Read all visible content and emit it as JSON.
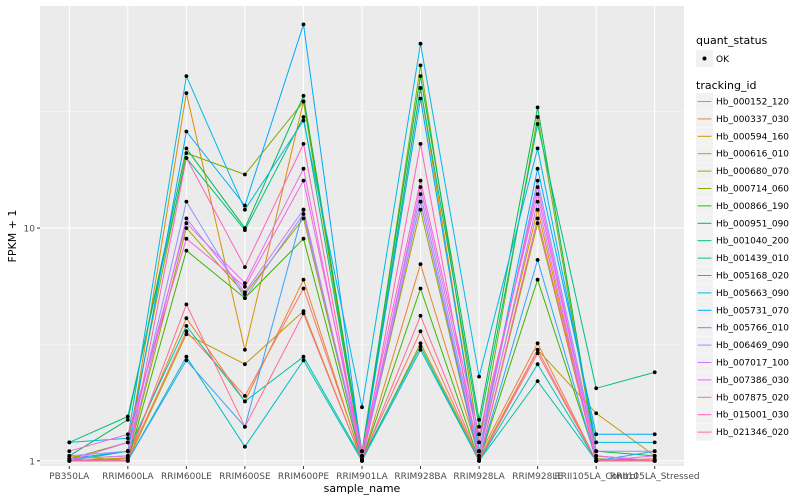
{
  "chart_data": {
    "type": "line",
    "xlabel": "sample_name",
    "ylabel": "FPKM + 1",
    "y_scale": "log10",
    "ylim": [
      0.95,
      90
    ],
    "y_ticks": [
      1,
      10
    ],
    "y_tick_labels": [
      "1",
      "10"
    ],
    "grid": true,
    "legend_position": "right",
    "categories": [
      "PB350LA",
      "RRIM600LA",
      "RRIM600LE",
      "RRIM600SE",
      "RRIM600PE",
      "RRIM901LA",
      "RRIM928BA",
      "RRIM928LA",
      "RRIM928LE",
      "RRII105LA_Control",
      "RRII105LA_Stressed"
    ],
    "category_labels": [
      "PB350LA",
      "RRIM600LA",
      "RRIM600LE",
      "RRIM600SE",
      "RRIM600PE",
      "RRIM901LA",
      "RRIM928BA",
      "RRIM928LA",
      "RRIM928LE",
      "RRII105LA_Control",
      "RRII105LA_Stressed"
    ],
    "legend_quant_title": "quant_status",
    "legend_quant_items": [
      "OK"
    ],
    "legend_title": "tracking_id",
    "series": [
      {
        "name": "Hb_000152_120",
        "color": "#F8766D",
        "values": [
          1.0,
          1.02,
          3.6,
          1.9,
          5.5,
          1.02,
          3.6,
          1.0,
          2.9,
          1.0,
          1.0
        ]
      },
      {
        "name": "Hb_000337_030",
        "color": "#EA8331",
        "values": [
          1.02,
          1.05,
          4.1,
          1.8,
          6.0,
          1.0,
          7.0,
          1.05,
          3.2,
          1.0,
          1.02
        ]
      },
      {
        "name": "Hb_000594_160",
        "color": "#D89000",
        "values": [
          1.0,
          1.1,
          38.0,
          3.0,
          35.0,
          1.05,
          40.0,
          1.1,
          12.0,
          1.0,
          1.0
        ]
      },
      {
        "name": "Hb_000616_010",
        "color": "#C09B00",
        "values": [
          1.05,
          1.0,
          3.5,
          2.6,
          4.4,
          1.0,
          3.2,
          1.02,
          3.0,
          1.6,
          1.05
        ]
      },
      {
        "name": "Hb_000680_070",
        "color": "#A3A500",
        "values": [
          1.0,
          1.03,
          10.0,
          5.2,
          11.0,
          1.02,
          12.0,
          1.0,
          10.5,
          1.0,
          1.0
        ]
      },
      {
        "name": "Hb_000714_060",
        "color": "#7CAE00",
        "values": [
          1.02,
          1.2,
          21.0,
          17.0,
          35.0,
          1.05,
          50.0,
          1.2,
          30.0,
          1.05,
          1.0
        ]
      },
      {
        "name": "Hb_000866_190",
        "color": "#39B600",
        "values": [
          1.0,
          1.0,
          8.0,
          5.0,
          9.0,
          1.0,
          5.5,
          1.0,
          6.0,
          1.02,
          1.0
        ]
      },
      {
        "name": "Hb_000951_090",
        "color": "#00BB4E",
        "values": [
          1.05,
          1.5,
          22.0,
          10.0,
          37.0,
          1.1,
          45.0,
          1.5,
          33.0,
          1.1,
          1.05
        ]
      },
      {
        "name": "Hb_001040_200",
        "color": "#00BF7D",
        "values": [
          1.2,
          1.55,
          20.0,
          9.8,
          30.0,
          1.05,
          40.0,
          1.4,
          28.0,
          2.05,
          2.4
        ]
      },
      {
        "name": "Hb_001439_010",
        "color": "#00C1A3",
        "values": [
          1.0,
          1.1,
          3.8,
          1.8,
          2.8,
          1.02,
          3.1,
          1.0,
          2.2,
          1.0,
          1.0
        ]
      },
      {
        "name": "Hb_005168_020",
        "color": "#00BFC4",
        "values": [
          1.0,
          1.0,
          2.8,
          1.15,
          2.7,
          1.0,
          3.0,
          1.0,
          2.6,
          1.0,
          1.0
        ]
      },
      {
        "name": "Hb_005663_090",
        "color": "#00B8E7",
        "values": [
          1.2,
          1.25,
          45.0,
          12.0,
          29.0,
          1.7,
          62.0,
          2.3,
          22.0,
          1.2,
          1.2
        ]
      },
      {
        "name": "Hb_005731_070",
        "color": "#00A9FF",
        "values": [
          1.02,
          1.1,
          26.0,
          12.5,
          75.0,
          1.05,
          36.0,
          1.1,
          18.0,
          1.3,
          1.3
        ]
      },
      {
        "name": "Hb_005766_010",
        "color": "#35A2FF",
        "values": [
          1.0,
          1.0,
          2.7,
          1.4,
          12.0,
          1.0,
          13.0,
          1.0,
          7.3,
          1.0,
          1.1
        ]
      },
      {
        "name": "Hb_006469_090",
        "color": "#9590FF",
        "values": [
          1.05,
          1.1,
          13.0,
          5.0,
          11.5,
          1.05,
          14.0,
          1.1,
          16.0,
          1.1,
          1.1
        ]
      },
      {
        "name": "Hb_007017_100",
        "color": "#C77CFF",
        "values": [
          1.02,
          1.05,
          11.0,
          5.3,
          12.0,
          1.02,
          13.0,
          1.05,
          13.0,
          1.0,
          1.05
        ]
      },
      {
        "name": "Hb_007386_030",
        "color": "#E76BF3",
        "values": [
          1.0,
          1.2,
          10.5,
          5.8,
          18.0,
          1.0,
          15.0,
          1.2,
          15.0,
          1.05,
          1.0
        ]
      },
      {
        "name": "Hb_007875_020",
        "color": "#FA62DB",
        "values": [
          1.1,
          1.3,
          9.0,
          5.6,
          16.0,
          1.1,
          16.0,
          1.3,
          14.0,
          1.05,
          1.0
        ]
      },
      {
        "name": "Hb_015001_030",
        "color": "#FF62BC",
        "values": [
          1.0,
          1.0,
          20.0,
          6.8,
          23.0,
          1.0,
          23.0,
          1.0,
          11.0,
          1.0,
          1.0
        ]
      },
      {
        "name": "Hb_021346_020",
        "color": "#FF6C91",
        "values": [
          1.0,
          1.0,
          4.7,
          1.4,
          4.3,
          1.0,
          4.2,
          1.0,
          3.0,
          1.0,
          1.0
        ]
      }
    ]
  }
}
